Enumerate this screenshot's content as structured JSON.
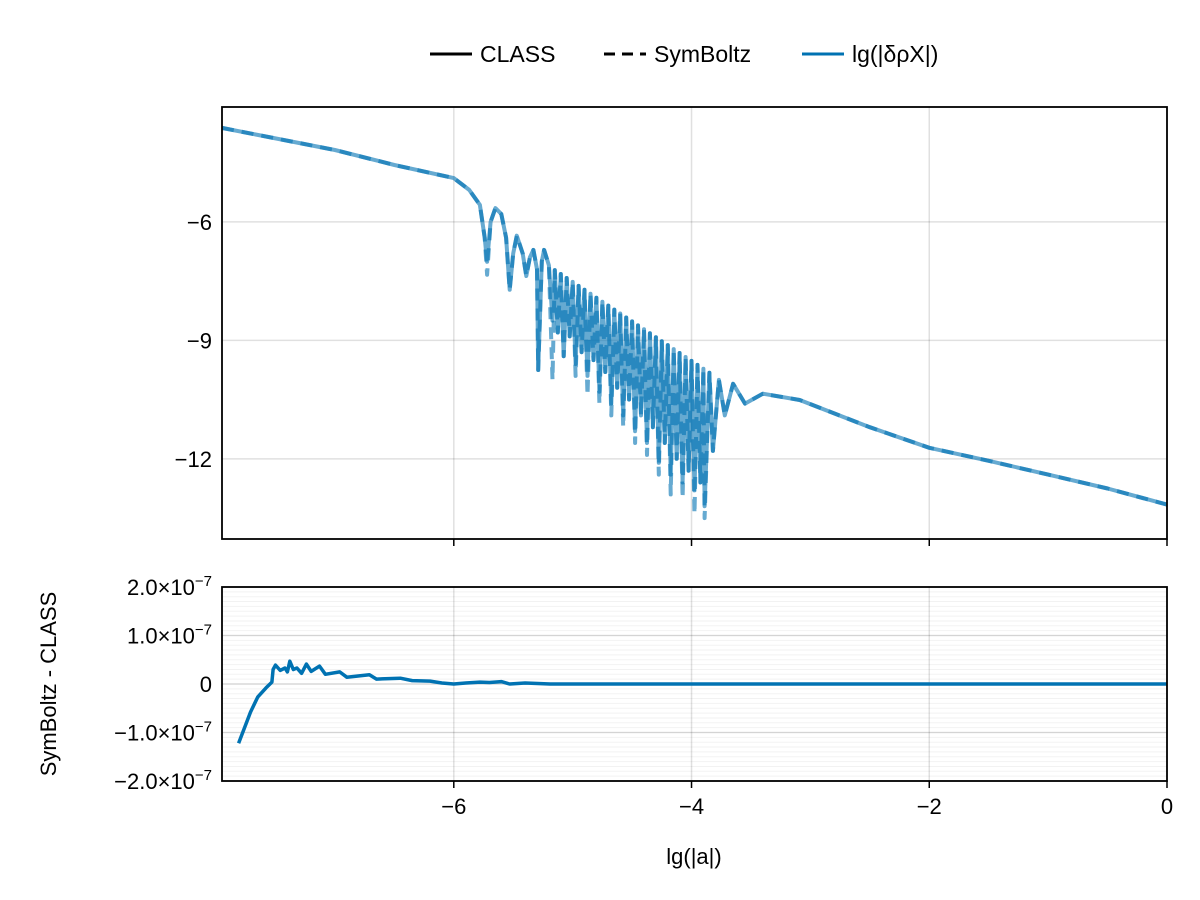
{
  "chart_data": [
    {
      "type": "line",
      "panel": "top",
      "xlabel": "",
      "ylabel": "",
      "xlim": [
        -7.95,
        0
      ],
      "ylim": [
        -14.03,
        -3.09
      ],
      "xticks": [
        -6,
        -4,
        -2,
        0
      ],
      "xtick_labels_shown": false,
      "yticks": [
        -6,
        -9,
        -12
      ],
      "ytick_labels": [
        "−6",
        "−9",
        "−12"
      ],
      "grid": true,
      "color": "#0072b2",
      "series": [
        {
          "name": "CLASS",
          "style": "solid",
          "x": [
            -7.95,
            -7.0,
            -6.5,
            -6.0,
            -5.87,
            -5.78,
            -5.74,
            -5.72,
            -5.69,
            -5.65,
            -5.6,
            -5.56,
            -5.53,
            -5.5,
            -5.47,
            -5.42,
            -5.39,
            -5.36,
            -5.33,
            -5.3,
            -5.29,
            -5.26,
            -5.24,
            -5.2,
            -5.17,
            -5.15,
            -5.125,
            -5.1,
            -5.075,
            -5.05,
            -5.025,
            -5.0,
            -4.975,
            -4.95,
            -4.925,
            -4.9,
            -4.875,
            -4.85,
            -4.825,
            -4.8,
            -4.775,
            -4.75,
            -4.725,
            -4.7,
            -4.675,
            -4.65,
            -4.625,
            -4.6,
            -4.575,
            -4.55,
            -4.525,
            -4.5,
            -4.475,
            -4.45,
            -4.425,
            -4.4,
            -4.375,
            -4.35,
            -4.325,
            -4.3,
            -4.275,
            -4.25,
            -4.225,
            -4.2,
            -4.175,
            -4.15,
            -4.125,
            -4.1,
            -4.075,
            -4.05,
            -4.025,
            -4.0,
            -3.975,
            -3.95,
            -3.925,
            -3.9,
            -3.89,
            -3.85,
            -3.82,
            -3.77,
            -3.72,
            -3.65,
            -3.55,
            -3.4,
            -3.09,
            -2.5,
            -2.0,
            -1.5,
            -1.0,
            -0.5,
            0
          ],
          "y": [
            -3.62,
            -4.18,
            -4.56,
            -4.89,
            -5.19,
            -5.57,
            -6.4,
            -7.01,
            -6.0,
            -5.65,
            -5.8,
            -6.4,
            -7.72,
            -6.8,
            -6.35,
            -6.8,
            -7.37,
            -6.9,
            -6.71,
            -7.2,
            -9.75,
            -7.0,
            -6.71,
            -7.1,
            -8.5,
            -7.22,
            -8.8,
            -7.32,
            -9.4,
            -7.42,
            -8.9,
            -7.52,
            -9.6,
            -7.62,
            -9.3,
            -7.72,
            -9.9,
            -7.82,
            -9.5,
            -7.92,
            -10.3,
            -8.02,
            -9.8,
            -8.12,
            -10.6,
            -8.22,
            -10.2,
            -8.32,
            -10.9,
            -8.42,
            -10.5,
            -8.52,
            -11.3,
            -8.62,
            -10.9,
            -8.72,
            -11.6,
            -8.82,
            -11.2,
            -8.92,
            -12.1,
            -9.02,
            -11.6,
            -9.12,
            -12.4,
            -9.22,
            -12.0,
            -9.32,
            -12.6,
            -9.42,
            -12.3,
            -9.52,
            -12.8,
            -9.62,
            -12.6,
            -9.72,
            -13.2,
            -9.82,
            -11.8,
            -10.0,
            -10.9,
            -10.1,
            -10.6,
            -10.35,
            -10.51,
            -11.2,
            -11.72,
            -12.05,
            -12.4,
            -12.75,
            -13.16
          ]
        },
        {
          "name": "SymBoltz",
          "style": "dashed",
          "x": [
            -7.95,
            -7.0,
            -6.5,
            -6.0,
            -5.87,
            -5.78,
            -5.74,
            -5.72,
            -5.69,
            -5.65,
            -5.6,
            -5.56,
            -5.53,
            -5.5,
            -5.47,
            -5.42,
            -5.39,
            -5.36,
            -5.33,
            -5.3,
            -5.29,
            -5.26,
            -5.24,
            -5.2,
            -5.17,
            -5.15,
            -5.125,
            -5.1,
            -5.075,
            -5.05,
            -5.025,
            -5.0,
            -4.975,
            -4.95,
            -4.925,
            -4.9,
            -4.875,
            -4.85,
            -4.825,
            -4.8,
            -4.775,
            -4.75,
            -4.725,
            -4.7,
            -4.675,
            -4.65,
            -4.625,
            -4.6,
            -4.575,
            -4.55,
            -4.525,
            -4.5,
            -4.475,
            -4.45,
            -4.425,
            -4.4,
            -4.375,
            -4.35,
            -4.325,
            -4.3,
            -4.275,
            -4.25,
            -4.225,
            -4.2,
            -4.175,
            -4.15,
            -4.125,
            -4.1,
            -4.075,
            -4.05,
            -4.025,
            -4.0,
            -3.975,
            -3.95,
            -3.925,
            -3.9,
            -3.89,
            -3.85,
            -3.82,
            -3.77,
            -3.72,
            -3.65,
            -3.55,
            -3.4,
            -3.09,
            -2.5,
            -2.0,
            -1.5,
            -1.0,
            -0.5,
            0
          ],
          "y": [
            -3.62,
            -4.18,
            -4.56,
            -4.89,
            -5.19,
            -5.57,
            -6.4,
            -7.34,
            -6.0,
            -5.65,
            -5.8,
            -6.4,
            -7.72,
            -6.8,
            -6.35,
            -6.8,
            -7.37,
            -6.9,
            -6.71,
            -7.2,
            -9.75,
            -7.0,
            -6.71,
            -7.1,
            -10.0,
            -7.22,
            -8.8,
            -7.32,
            -9.4,
            -7.42,
            -8.9,
            -7.52,
            -9.9,
            -7.62,
            -9.3,
            -7.72,
            -10.4,
            -7.82,
            -9.5,
            -7.92,
            -10.6,
            -8.02,
            -9.8,
            -8.12,
            -10.9,
            -8.22,
            -10.2,
            -8.32,
            -11.2,
            -8.42,
            -10.5,
            -8.52,
            -11.6,
            -8.62,
            -10.9,
            -8.72,
            -11.9,
            -8.82,
            -11.2,
            -8.92,
            -12.4,
            -9.02,
            -11.6,
            -9.12,
            -12.9,
            -9.22,
            -12.0,
            -9.32,
            -13.0,
            -9.42,
            -12.3,
            -9.52,
            -13.4,
            -9.62,
            -12.6,
            -9.72,
            -13.5,
            -9.82,
            -11.8,
            -10.0,
            -10.9,
            -10.1,
            -10.6,
            -10.35,
            -10.51,
            -11.2,
            -11.72,
            -12.05,
            -12.4,
            -12.75,
            -13.16
          ]
        }
      ]
    },
    {
      "type": "line",
      "panel": "bottom",
      "xlabel": "lg(|a|)",
      "ylabel": "SymBoltz - CLASS",
      "xlim": [
        -7.95,
        0
      ],
      "ylim": [
        -2e-07,
        2e-07
      ],
      "xticks": [
        -6,
        -4,
        -2,
        0
      ],
      "xtick_labels": [
        "−6",
        "−4",
        "−2",
        "0"
      ],
      "yticks": [
        2e-07,
        1e-07,
        0,
        -1e-07,
        -2e-07
      ],
      "ytick_labels": [
        {
          "mant": "2.0×10",
          "exp": "−7"
        },
        {
          "mant": "1.0×10",
          "exp": "−7"
        },
        {
          "mant": "0",
          "exp": ""
        },
        {
          "mant": "−1.0×10",
          "exp": "−7"
        },
        {
          "mant": "−2.0×10",
          "exp": "−7"
        }
      ],
      "grid": true,
      "minor_grid": true,
      "color": "#0072b2",
      "x": [
        -7.81,
        -7.71,
        -7.65,
        -7.58,
        -7.53,
        -7.52,
        -7.5,
        -7.46,
        -7.42,
        -7.4,
        -7.38,
        -7.35,
        -7.32,
        -7.28,
        -7.24,
        -7.2,
        -7.13,
        -7.08,
        -6.96,
        -6.9,
        -6.71,
        -6.65,
        -6.45,
        -6.35,
        -6.2,
        -6.1,
        -6.0,
        -5.9,
        -5.78,
        -5.7,
        -5.6,
        -5.53,
        -5.4,
        -5.19,
        -4.5,
        -3.0,
        -2.0,
        -1.0,
        0
      ],
      "y": [
        -1.22e-07,
        -5.8e-08,
        -2.7e-08,
        -8e-09,
        4e-09,
        3e-08,
        3.9e-08,
        2.8e-08,
        3.3e-08,
        2.5e-08,
        4.7e-08,
        3e-08,
        3.3e-08,
        2.2e-08,
        4.1e-08,
        2.6e-08,
        3.7e-08,
        2e-08,
        2.5e-08,
        1.4e-08,
        1.9e-08,
        1e-08,
        1.2e-08,
        7e-09,
        6e-09,
        2e-09,
        0,
        2e-09,
        4e-09,
        3e-09,
        5e-09,
        0,
        2e-09,
        0,
        0,
        0,
        0,
        0,
        0
      ]
    }
  ],
  "legend": {
    "placement": "top-center",
    "entries": [
      {
        "label": "CLASS",
        "style": "solid",
        "color": "#000000"
      },
      {
        "label": "SymBoltz",
        "style": "dashed",
        "color": "#000000"
      },
      {
        "label": "lg(|δρX|)",
        "style": "solid",
        "color": "#0072b2"
      }
    ]
  }
}
